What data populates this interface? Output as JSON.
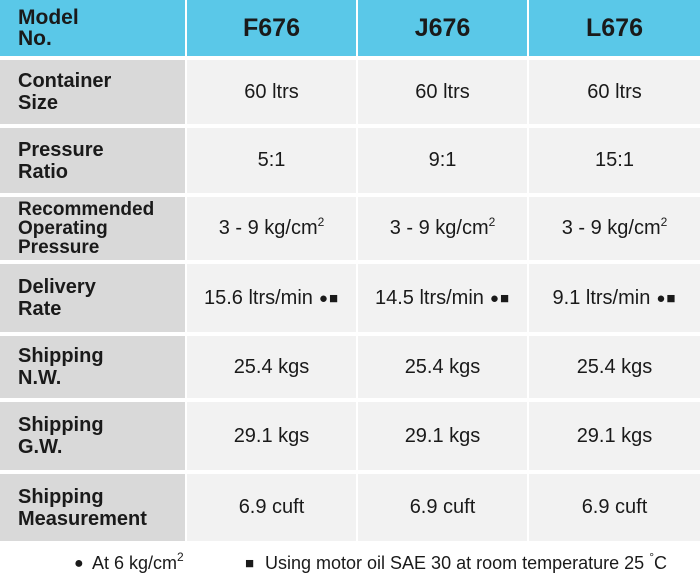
{
  "header": {
    "label": [
      "Model",
      "No."
    ],
    "models": [
      "F676",
      "J676",
      "L676"
    ]
  },
  "rows": [
    {
      "label": [
        "Container",
        "Size"
      ],
      "values": [
        "60 ltrs",
        "60 ltrs",
        "60 ltrs"
      ]
    },
    {
      "label": [
        "Pressure",
        "Ratio"
      ],
      "values": [
        "5:1",
        "9:1",
        "15:1"
      ]
    },
    {
      "label": [
        "Recommended",
        "Operating",
        "Pressure"
      ],
      "values": [
        "3 - 9 kg/cm",
        "3 - 9 kg/cm",
        "3 - 9 kg/cm"
      ],
      "unit_sup": "2"
    },
    {
      "label": [
        "Delivery",
        "Rate"
      ],
      "values": [
        "15.6 ltrs/min",
        "14.5 ltrs/min",
        "9.1 ltrs/min"
      ],
      "mark": "●■"
    },
    {
      "label": [
        "Shipping",
        "N.W."
      ],
      "values": [
        "25.4 kgs",
        "25.4 kgs",
        "25.4 kgs"
      ]
    },
    {
      "label": [
        "Shipping",
        "G.W."
      ],
      "values": [
        "29.1 kgs",
        "29.1 kgs",
        "29.1 kgs"
      ]
    },
    {
      "label": [
        "Shipping",
        "Measurement"
      ],
      "values": [
        "6.9 cuft",
        "6.9 cuft",
        "6.9 cuft"
      ]
    }
  ],
  "footnote": {
    "circle_symbol": "●",
    "circle_text": "At 6 kg/cm",
    "circle_sup": "2",
    "square_symbol": "■",
    "square_text": "Using motor oil SAE 30 at room temperature 25",
    "degree_symbol": "°",
    "degree_unit": "C"
  },
  "colors": {
    "header_bg": "#5ac8e8",
    "label_bg": "#d9d9d9",
    "value_bg": "#f2f2f2",
    "text": "#1a1a1a"
  }
}
